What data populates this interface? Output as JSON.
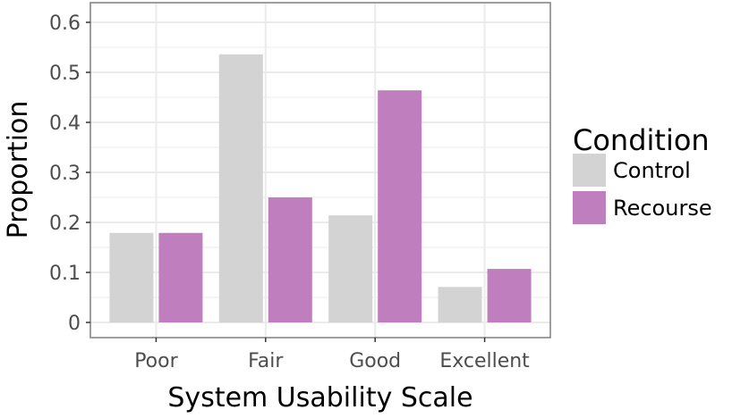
{
  "chart_data": {
    "type": "bar",
    "title": "",
    "xlabel": "System Usability Scale",
    "ylabel": "Proportion",
    "categories": [
      "Poor",
      "Fair",
      "Good",
      "Excellent"
    ],
    "ylim": [
      0,
      0.63
    ],
    "yticks": [
      0,
      0.1,
      0.2,
      0.3,
      0.4,
      0.5,
      0.6
    ],
    "ytick_labels": [
      "0",
      "0.1",
      "0.2",
      "0.3",
      "0.4",
      "0.5",
      "0.6"
    ],
    "grid": true,
    "legend": {
      "title": "Condition",
      "placement": "right"
    },
    "series": [
      {
        "name": "Control",
        "color": "#d3d3d3",
        "values": [
          0.179,
          0.536,
          0.214,
          0.071
        ]
      },
      {
        "name": "Recourse",
        "color": "#bf7fbf",
        "values": [
          0.179,
          0.25,
          0.464,
          0.107
        ]
      }
    ]
  }
}
